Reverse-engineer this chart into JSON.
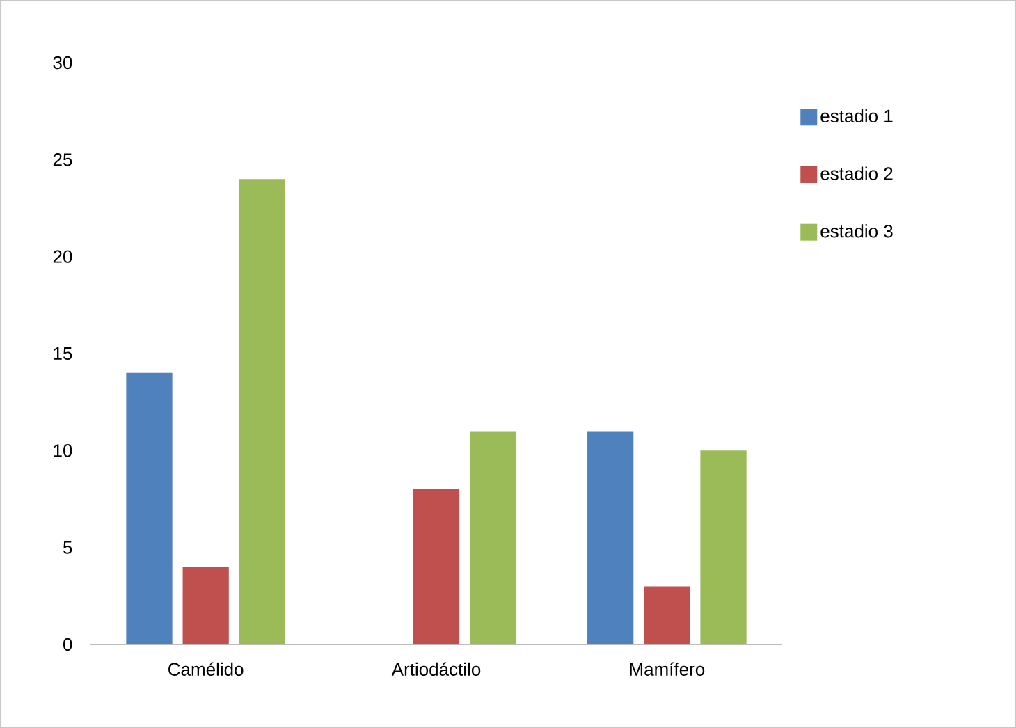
{
  "chart_data": {
    "type": "bar",
    "categories": [
      "Camélido",
      "Artiodáctilo",
      "Mamífero"
    ],
    "series": [
      {
        "name": "estadio 1",
        "color": "#4f81bd",
        "values": [
          14,
          0,
          11
        ]
      },
      {
        "name": "estadio 2",
        "color": "#c0504d",
        "values": [
          4,
          8,
          3
        ]
      },
      {
        "name": "estadio 3",
        "color": "#9bbb59",
        "values": [
          24,
          11,
          10
        ]
      }
    ],
    "ylim": [
      0,
      30
    ],
    "yticks": [
      0,
      5,
      10,
      15,
      20,
      25,
      30
    ],
    "legend": "right",
    "grid": false
  }
}
